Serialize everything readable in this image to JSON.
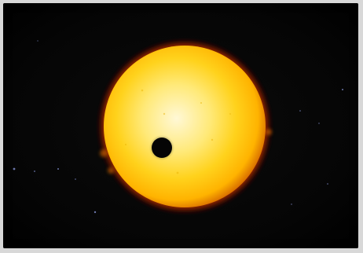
{
  "scene": {
    "subject": "sun-with-transiting-planet",
    "colors": {
      "space": "#050505",
      "sun_core": "#fff7cc",
      "sun_mid": "#ffd21c",
      "sun_edge": "#ffb000",
      "corona": "#8f1e00",
      "planet": "#050505",
      "frame": "#d8d8d8"
    }
  }
}
